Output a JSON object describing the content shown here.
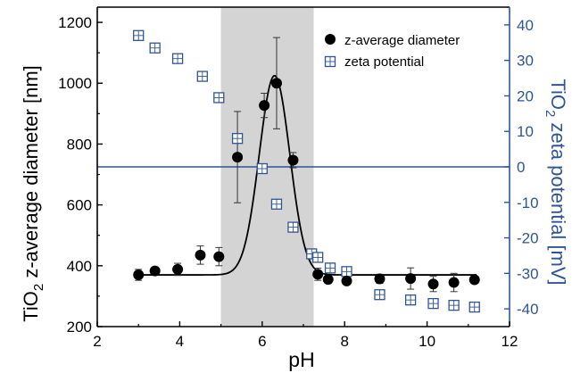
{
  "chart_data": {
    "type": "scatter",
    "xlabel": "pH",
    "ylabel_left": {
      "prefix": "TiO",
      "sub": "2",
      "suffix": " z-average diameter [nm]"
    },
    "ylabel_right": {
      "prefix": "TiO",
      "sub": "2",
      "suffix": " zeta potential [mV]"
    },
    "xlim": [
      2,
      12
    ],
    "ylim_left": [
      200,
      1250
    ],
    "ylim_right": [
      -45,
      45
    ],
    "x_ticks": [
      2,
      4,
      6,
      8,
      10,
      12
    ],
    "y_left_ticks": [
      200,
      400,
      600,
      800,
      1000,
      1200
    ],
    "y_right_ticks": [
      -40,
      -30,
      -20,
      -10,
      0,
      10,
      20,
      30,
      40
    ],
    "shaded_region": {
      "x_from": 5.0,
      "x_to": 7.25,
      "color": "#d4d4d4"
    },
    "zero_line": {
      "axis": "right",
      "y": 0,
      "color": "#2f5597"
    },
    "colors": {
      "left_axis": "#000000",
      "right_axis": "#2f5597",
      "series_1": "#000000",
      "series_2": "#2f5597"
    },
    "legend": {
      "position": "top-right"
    },
    "series": [
      {
        "name": "z-average diameter",
        "axis": "left",
        "marker": "filled-circle",
        "points": [
          {
            "x": 3.0,
            "y": 370,
            "err": 18
          },
          {
            "x": 3.4,
            "y": 383,
            "err": 12
          },
          {
            "x": 3.95,
            "y": 388,
            "err": 20
          },
          {
            "x": 4.5,
            "y": 435,
            "err": 30
          },
          {
            "x": 4.95,
            "y": 430,
            "err": 30
          },
          {
            "x": 5.4,
            "y": 757,
            "err": 150
          },
          {
            "x": 6.05,
            "y": 927,
            "err": 40
          },
          {
            "x": 6.35,
            "y": 1000,
            "err": 150
          },
          {
            "x": 6.75,
            "y": 747,
            "err": 25
          },
          {
            "x": 7.35,
            "y": 372,
            "err": 20
          },
          {
            "x": 7.6,
            "y": 355,
            "err": 12
          },
          {
            "x": 8.05,
            "y": 350,
            "err": 12
          },
          {
            "x": 8.85,
            "y": 357,
            "err": 15
          },
          {
            "x": 9.6,
            "y": 358,
            "err": 35
          },
          {
            "x": 10.15,
            "y": 340,
            "err": 25
          },
          {
            "x": 10.65,
            "y": 345,
            "err": 30
          },
          {
            "x": 11.15,
            "y": 354,
            "err": 12
          }
        ]
      },
      {
        "name": "zeta potential",
        "axis": "right",
        "marker": "open-square",
        "points": [
          {
            "x": 3.0,
            "y": 37
          },
          {
            "x": 3.4,
            "y": 33.5
          },
          {
            "x": 3.95,
            "y": 30.5
          },
          {
            "x": 4.55,
            "y": 25.5
          },
          {
            "x": 4.95,
            "y": 19.5
          },
          {
            "x": 5.4,
            "y": 8
          },
          {
            "x": 6.0,
            "y": -0.5
          },
          {
            "x": 6.35,
            "y": -10.5
          },
          {
            "x": 6.75,
            "y": -17
          },
          {
            "x": 7.2,
            "y": -24.5
          },
          {
            "x": 7.35,
            "y": -25.5
          },
          {
            "x": 7.65,
            "y": -28.5
          },
          {
            "x": 8.05,
            "y": -29.5
          },
          {
            "x": 8.85,
            "y": -36
          },
          {
            "x": 9.6,
            "y": -37.5
          },
          {
            "x": 10.15,
            "y": -38.5
          },
          {
            "x": 10.65,
            "y": -39
          },
          {
            "x": 11.15,
            "y": -39.5
          }
        ]
      }
    ],
    "fit_curve": {
      "axis": "left",
      "baseline": 370,
      "peak": 1025,
      "center": 6.3,
      "width": 0.37
    }
  }
}
